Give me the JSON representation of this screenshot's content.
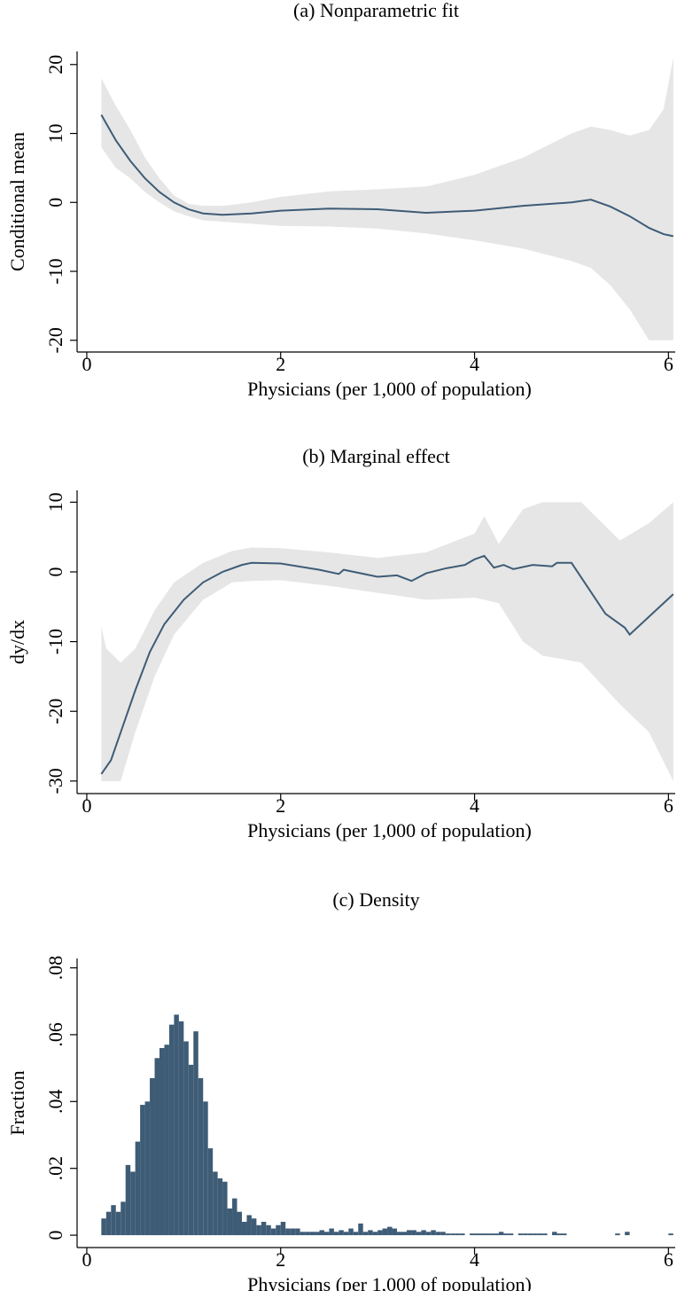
{
  "chart_data": [
    {
      "type": "line",
      "title": "(a) Nonparametric fit",
      "xlabel": "Physicians (per 1,000 of population)",
      "ylabel": "Conditional mean",
      "xlim": [
        -0.1,
        6.07
      ],
      "ylim": [
        -21.7,
        21.9
      ],
      "xticks": [
        0,
        2,
        4,
        6
      ],
      "yticks": [
        -20,
        -10,
        0,
        10,
        20
      ],
      "x": [
        0.15,
        0.3,
        0.45,
        0.6,
        0.75,
        0.9,
        1.05,
        1.2,
        1.4,
        1.7,
        2,
        2.5,
        3,
        3.5,
        4,
        4.5,
        5,
        5.2,
        5.4,
        5.6,
        5.8,
        5.95,
        6.05
      ],
      "color": "#3e5c76",
      "values": [
        12.7,
        9,
        6,
        3.5,
        1.5,
        0,
        -1,
        -1.6,
        -1.8,
        -1.6,
        -1.2,
        -0.9,
        -1,
        -1.5,
        -1.2,
        -0.5,
        0,
        0.4,
        -0.6,
        -2,
        -3.7,
        -4.6,
        -4.9
      ],
      "band": {
        "color": "#e6e6e6",
        "x": [
          0.15,
          0.3,
          0.45,
          0.6,
          0.75,
          0.9,
          1.05,
          1.2,
          1.4,
          1.7,
          2,
          2.5,
          3,
          3.5,
          4,
          4.5,
          5,
          5.2,
          5.4,
          5.6,
          5.8,
          5.95,
          6.05
        ],
        "upper": [
          18,
          14,
          10.5,
          6.5,
          3.5,
          1,
          -0.2,
          -0.5,
          -0.5,
          0,
          0.8,
          1.6,
          1.9,
          2.3,
          4,
          6.5,
          10,
          11,
          10.5,
          9.7,
          10.5,
          13.5,
          21
        ],
        "lower": [
          8,
          5,
          3.5,
          1.5,
          0,
          -1.3,
          -2,
          -2.6,
          -2.8,
          -3.1,
          -3.4,
          -3.5,
          -3.8,
          -4.5,
          -5.5,
          -6.7,
          -8.5,
          -9.5,
          -12,
          -15.5,
          -20,
          -20,
          -20
        ]
      }
    },
    {
      "type": "line",
      "title": "(b) Marginal effect",
      "xlabel": "Physicians (per 1,000 of population)",
      "ylabel": "dy/dx",
      "xlim": [
        -0.1,
        6.07
      ],
      "ylim": [
        -31.8,
        11.7
      ],
      "xticks": [
        0,
        2,
        4,
        6
      ],
      "yticks": [
        -30,
        -20,
        -10,
        0,
        10
      ],
      "x": [
        0.15,
        0.25,
        0.35,
        0.5,
        0.65,
        0.8,
        1,
        1.2,
        1.4,
        1.6,
        1.7,
        2,
        2.4,
        2.6,
        2.65,
        3,
        3.2,
        3.35,
        3.5,
        3.7,
        3.9,
        4,
        4.1,
        4.2,
        4.3,
        4.4,
        4.6,
        4.8,
        4.85,
        5,
        5.35,
        5.45,
        5.55,
        5.6,
        6.05
      ],
      "color": "#3e5c76",
      "values": [
        -29,
        -27,
        -23,
        -17,
        -11.5,
        -7.5,
        -4,
        -1.5,
        0,
        1,
        1.3,
        1.2,
        0.3,
        -0.3,
        0.3,
        -0.7,
        -0.5,
        -1.3,
        -0.2,
        0.5,
        1,
        1.8,
        2.3,
        0.6,
        1,
        0.4,
        1,
        0.8,
        1.3,
        1.3,
        -6,
        -7,
        -8,
        -9,
        -3.2
      ],
      "band": {
        "color": "#e6e6e6",
        "x": [
          0.15,
          0.2,
          0.35,
          0.5,
          0.7,
          0.9,
          1.2,
          1.5,
          1.7,
          2,
          2.5,
          3,
          3.5,
          4,
          4.1,
          4.25,
          4.5,
          4.7,
          5.1,
          5.5,
          5.8,
          6.05
        ],
        "upper": [
          -7.8,
          -11,
          -13,
          -11,
          -5.5,
          -1.5,
          1.3,
          3,
          3.5,
          3.4,
          2.8,
          2,
          2.8,
          5.5,
          8,
          4,
          9,
          10,
          10,
          4.5,
          7,
          10
        ],
        "lower": [
          -30,
          -30,
          -30,
          -23,
          -15,
          -9,
          -4,
          -1.5,
          -1.3,
          -1.2,
          -2,
          -3,
          -4,
          -3.7,
          -4,
          -4.5,
          -10,
          -12,
          -13,
          -19,
          -23,
          -30
        ]
      }
    },
    {
      "type": "histogram",
      "title": "(c) Density",
      "xlabel": "Physicians (per 1,000 of population)",
      "ylabel": "Fraction",
      "xlim": [
        -0.1,
        6.07
      ],
      "ylim": [
        -0.0037,
        0.0828
      ],
      "xticks": [
        0,
        2,
        4,
        6
      ],
      "yticks": [
        0,
        {
          "value": 0.02,
          "label": ".02"
        },
        {
          "value": 0.04,
          "label": ".04"
        },
        {
          "value": 0.06,
          "label": ".06"
        },
        {
          "value": 0.08,
          "label": ".08"
        }
      ],
      "color": "#3e5c76",
      "bins": [
        0.15,
        0.2,
        0.25,
        0.3,
        0.35,
        0.4,
        0.45,
        0.5,
        0.55,
        0.6,
        0.65,
        0.7,
        0.75,
        0.8,
        0.85,
        0.9,
        0.95,
        1.0,
        1.05,
        1.1,
        1.15,
        1.2,
        1.25,
        1.3,
        1.35,
        1.4,
        1.45,
        1.5,
        1.55,
        1.6,
        1.65,
        1.7,
        1.75,
        1.8,
        1.85,
        1.9,
        1.95,
        2.0,
        2.05,
        2.1,
        2.15,
        2.2,
        2.25,
        2.3,
        2.35,
        2.4,
        2.45,
        2.5,
        2.55,
        2.6,
        2.65,
        2.7,
        2.75,
        2.8,
        2.85,
        2.9,
        2.95,
        3.0,
        3.05,
        3.1,
        3.15,
        3.2,
        3.25,
        3.3,
        3.35,
        3.4,
        3.45,
        3.5,
        3.55,
        3.6,
        3.65,
        3.7,
        3.75,
        3.8,
        3.85,
        3.9,
        3.95,
        4.0,
        4.05,
        4.1,
        4.15,
        4.2,
        4.25,
        4.3,
        4.35,
        4.4,
        4.45,
        4.5,
        4.55,
        4.6,
        4.65,
        4.7,
        4.75,
        4.8,
        4.85,
        4.9,
        4.95,
        5.0,
        5.05,
        5.1,
        5.15,
        5.2,
        5.25,
        5.3,
        5.35,
        5.4,
        5.45,
        5.5,
        5.55,
        5.6,
        5.65,
        5.7,
        5.75,
        5.8,
        5.85,
        5.9,
        5.95,
        6.0,
        6.05
      ],
      "values": [
        0.005,
        0.007,
        0.009,
        0.007,
        0.01,
        0.021,
        0.019,
        0.028,
        0.039,
        0.04,
        0.047,
        0.053,
        0.056,
        0.057,
        0.063,
        0.066,
        0.064,
        0.058,
        0.051,
        0.061,
        0.047,
        0.04,
        0.026,
        0.019,
        0.017,
        0.016,
        0.008,
        0.011,
        0.007,
        0.004,
        0.006,
        0.005,
        0.003,
        0.004,
        0.003,
        0.002,
        0.003,
        0.004,
        0.002,
        0.002,
        0.002,
        0.001,
        0.001,
        0.001,
        0.001,
        0.0015,
        0.001,
        0.002,
        0.001,
        0.0015,
        0.001,
        0.002,
        0.001,
        0.0035,
        0.001,
        0.0015,
        0.001,
        0.0015,
        0.002,
        0.0025,
        0.002,
        0.001,
        0.001,
        0.0015,
        0.0015,
        0.001,
        0.0015,
        0.001,
        0.0015,
        0.001,
        0.001,
        0.0005,
        0.0005,
        0.0005,
        0.0005,
        0,
        0.0005,
        0.0005,
        0.0005,
        0.0005,
        0.0005,
        0.0005,
        0.001,
        0.0005,
        0.0005,
        0,
        0.0005,
        0.0005,
        0.0005,
        0.0005,
        0.0005,
        0.0005,
        0,
        0.001,
        0.0005,
        0.0005,
        0,
        0,
        0,
        0,
        0,
        0,
        0,
        0,
        0,
        0,
        0.0005,
        0,
        0.001,
        0,
        0,
        0,
        0,
        0,
        0,
        0,
        0,
        0.0005
      ]
    }
  ]
}
